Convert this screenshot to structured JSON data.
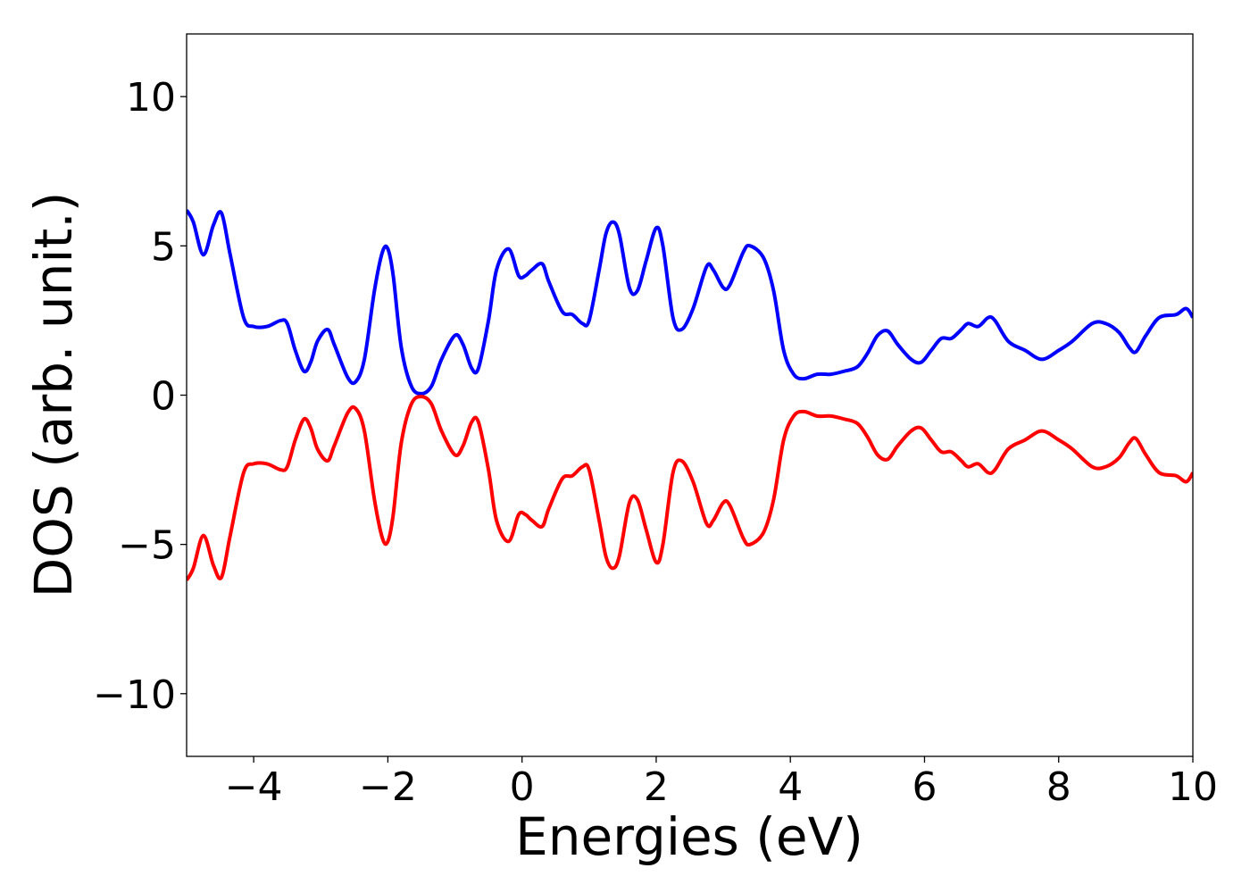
{
  "chart_data": {
    "type": "line",
    "title": "",
    "xlabel": "Energies (eV)",
    "ylabel": "DOS (arb. unit.)",
    "xlim": [
      -5,
      10
    ],
    "ylim": [
      -12.1,
      12.1
    ],
    "xticks": [
      -4,
      -2,
      0,
      2,
      4,
      6,
      8,
      10
    ],
    "yticks": [
      -10,
      -5,
      0,
      5,
      10
    ],
    "xtick_labels": [
      "−4",
      "−2",
      "0",
      "2",
      "4",
      "6",
      "8",
      "10"
    ],
    "ytick_labels": [
      "−10",
      "−5",
      "0",
      "5",
      "10"
    ],
    "grid": false,
    "legend": "none",
    "series": [
      {
        "color": "#0000ff",
        "x": [
          -5.0,
          -4.9,
          -4.75,
          -4.6,
          -4.48,
          -4.35,
          -4.15,
          -4.0,
          -3.8,
          -3.6,
          -3.5,
          -3.38,
          -3.25,
          -3.15,
          -3.05,
          -2.9,
          -2.8,
          -2.6,
          -2.48,
          -2.35,
          -2.2,
          -2.08,
          -2.0,
          -1.92,
          -1.8,
          -1.65,
          -1.5,
          -1.35,
          -1.2,
          -1.0,
          -0.88,
          -0.75,
          -0.65,
          -0.5,
          -0.38,
          -0.2,
          -0.05,
          0.05,
          0.15,
          0.3,
          0.4,
          0.6,
          0.75,
          0.9,
          1.0,
          1.15,
          1.25,
          1.35,
          1.45,
          1.6,
          1.72,
          1.85,
          2.0,
          2.1,
          2.25,
          2.38,
          2.55,
          2.75,
          2.85,
          3.0,
          3.1,
          3.3,
          3.4,
          3.6,
          3.75,
          3.9,
          4.05,
          4.2,
          4.4,
          4.6,
          4.8,
          5.0,
          5.15,
          5.3,
          5.45,
          5.6,
          5.8,
          5.95,
          6.1,
          6.25,
          6.4,
          6.55,
          6.65,
          6.8,
          6.95,
          7.05,
          7.25,
          7.5,
          7.75,
          8.0,
          8.2,
          8.5,
          8.7,
          8.9,
          9.05,
          9.15,
          9.3,
          9.5,
          9.75,
          9.9,
          10.0
        ],
        "y": [
          6.2,
          5.8,
          4.7,
          5.7,
          6.1,
          4.7,
          2.6,
          2.3,
          2.3,
          2.5,
          2.4,
          1.5,
          0.8,
          1.1,
          1.8,
          2.2,
          1.7,
          0.6,
          0.45,
          1.2,
          3.5,
          4.8,
          4.9,
          4.0,
          1.6,
          0.3,
          0.05,
          0.3,
          1.2,
          2.0,
          1.7,
          0.9,
          0.9,
          2.5,
          4.2,
          4.9,
          4.0,
          4.0,
          4.2,
          4.4,
          3.8,
          2.8,
          2.7,
          2.4,
          2.5,
          4.2,
          5.4,
          5.8,
          5.4,
          3.6,
          3.5,
          4.5,
          5.6,
          5.0,
          2.6,
          2.2,
          2.9,
          4.3,
          4.2,
          3.6,
          3.7,
          4.8,
          5.0,
          4.6,
          3.5,
          1.5,
          0.7,
          0.55,
          0.7,
          0.7,
          0.8,
          0.95,
          1.4,
          2.0,
          2.15,
          1.7,
          1.2,
          1.1,
          1.5,
          1.9,
          1.9,
          2.2,
          2.4,
          2.3,
          2.6,
          2.5,
          1.8,
          1.5,
          1.2,
          1.5,
          1.8,
          2.4,
          2.4,
          2.1,
          1.6,
          1.45,
          2.0,
          2.6,
          2.7,
          2.9,
          2.6
        ]
      },
      {
        "color": "#ff0000",
        "x": [
          -5.0,
          -4.9,
          -4.75,
          -4.6,
          -4.48,
          -4.35,
          -4.15,
          -4.0,
          -3.8,
          -3.6,
          -3.5,
          -3.38,
          -3.25,
          -3.15,
          -3.05,
          -2.9,
          -2.8,
          -2.6,
          -2.48,
          -2.35,
          -2.2,
          -2.08,
          -2.0,
          -1.92,
          -1.8,
          -1.65,
          -1.5,
          -1.35,
          -1.2,
          -1.0,
          -0.88,
          -0.75,
          -0.65,
          -0.5,
          -0.38,
          -0.2,
          -0.05,
          0.05,
          0.15,
          0.3,
          0.4,
          0.6,
          0.75,
          0.9,
          1.0,
          1.15,
          1.25,
          1.35,
          1.45,
          1.6,
          1.72,
          1.85,
          2.0,
          2.1,
          2.25,
          2.38,
          2.55,
          2.75,
          2.85,
          3.0,
          3.1,
          3.3,
          3.4,
          3.6,
          3.75,
          3.9,
          4.05,
          4.2,
          4.4,
          4.6,
          4.8,
          5.0,
          5.15,
          5.3,
          5.45,
          5.6,
          5.8,
          5.95,
          6.1,
          6.25,
          6.4,
          6.55,
          6.65,
          6.8,
          6.95,
          7.05,
          7.25,
          7.5,
          7.75,
          8.0,
          8.2,
          8.5,
          8.7,
          8.9,
          9.05,
          9.15,
          9.3,
          9.5,
          9.75,
          9.9,
          10.0
        ],
        "y": [
          -6.2,
          -5.8,
          -4.7,
          -5.7,
          -6.1,
          -4.7,
          -2.6,
          -2.3,
          -2.3,
          -2.5,
          -2.4,
          -1.5,
          -0.8,
          -1.1,
          -1.8,
          -2.2,
          -1.7,
          -0.6,
          -0.45,
          -1.2,
          -3.5,
          -4.8,
          -4.9,
          -4.0,
          -1.6,
          -0.3,
          -0.05,
          -0.3,
          -1.2,
          -2.0,
          -1.7,
          -0.9,
          -0.9,
          -2.5,
          -4.2,
          -4.9,
          -4.0,
          -4.0,
          -4.2,
          -4.4,
          -3.8,
          -2.8,
          -2.7,
          -2.4,
          -2.5,
          -4.2,
          -5.4,
          -5.8,
          -5.4,
          -3.6,
          -3.5,
          -4.5,
          -5.6,
          -5.0,
          -2.6,
          -2.2,
          -2.9,
          -4.3,
          -4.2,
          -3.6,
          -3.7,
          -4.8,
          -5.0,
          -4.6,
          -3.5,
          -1.5,
          -0.7,
          -0.55,
          -0.7,
          -0.7,
          -0.8,
          -0.95,
          -1.4,
          -2.0,
          -2.15,
          -1.7,
          -1.2,
          -1.1,
          -1.5,
          -1.9,
          -1.9,
          -2.2,
          -2.4,
          -2.3,
          -2.6,
          -2.5,
          -1.8,
          -1.5,
          -1.2,
          -1.5,
          -1.8,
          -2.4,
          -2.4,
          -2.1,
          -1.6,
          -1.45,
          -2.0,
          -2.6,
          -2.7,
          -2.9,
          -2.6
        ]
      }
    ]
  }
}
